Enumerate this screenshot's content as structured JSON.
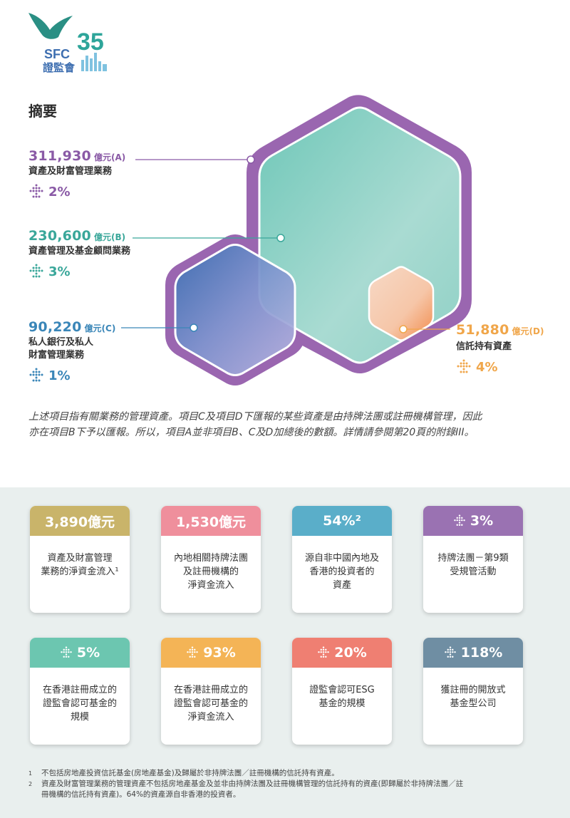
{
  "logo": {
    "text": "SFC",
    "anniversary": "35",
    "chinese": "證監會"
  },
  "heading": "摘要",
  "metrics": [
    {
      "key": "a",
      "value": "311,930",
      "unit": "億元(A)",
      "label": "資產及財富管理業務",
      "growth": "2%",
      "color": "#8a5aa6"
    },
    {
      "key": "b",
      "value": "230,600",
      "unit": "億元(B)",
      "label": "資產管理及基金顧問業務",
      "growth": "3%",
      "color": "#3aa79a"
    },
    {
      "key": "c",
      "value": "90,220",
      "unit": "億元(C)",
      "label_line1": "私人銀行及私人",
      "label_line2": "財富管理業務",
      "growth": "1%",
      "color": "#3a86b8"
    },
    {
      "key": "d",
      "value": "51,880",
      "unit": "億元(D)",
      "label": "信託持有資產",
      "growth": "4%",
      "color": "#f0a64a"
    }
  ],
  "note_line1": "上述項目指有關業務的管理資產。項目C及項目D下匯報的某些資產是由持牌法團或註冊機構管理，因此",
  "note_line2": "亦在項目B下予以匯報。所以，項目A並非項目B、C及D加總後的數額。詳情請參閱第20頁的附錄III。",
  "cards": [
    {
      "head": "3,890億元",
      "color": "#c9b46a",
      "lines": [
        "資產及財富管理",
        "業務的淨資金流入¹"
      ],
      "arrow": false
    },
    {
      "head": "1,530億元",
      "color": "#ef8f9c",
      "lines": [
        "內地相關持牌法團",
        "及註冊機構的",
        "淨資金流入"
      ],
      "arrow": false
    },
    {
      "head": "54%²",
      "color": "#5aaec9",
      "lines": [
        "源自非中國內地及",
        "香港的投資者的",
        "資產"
      ],
      "arrow": false
    },
    {
      "head": "3%",
      "color": "#9a72b2",
      "lines": [
        "持牌法團－第9類",
        "受規管活動"
      ],
      "arrow": true
    },
    {
      "head": "5%",
      "color": "#6cc6b0",
      "lines": [
        "在香港註冊成立的",
        "證監會認可基金的",
        "規模"
      ],
      "arrow": true
    },
    {
      "head": "93%",
      "color": "#f4b456",
      "lines": [
        "在香港註冊成立的",
        "證監會認可基金的",
        "淨資金流入"
      ],
      "arrow": true
    },
    {
      "head": "20%",
      "color": "#ef7f72",
      "lines": [
        "證監會認可ESG",
        "基金的規模"
      ],
      "arrow": true
    },
    {
      "head": "118%",
      "color": "#6f8ea3",
      "lines": [
        "獲註冊的開放式",
        "基金型公司"
      ],
      "arrow": true
    }
  ],
  "footnotes": [
    {
      "num": "1",
      "text": "不包括房地產投資信託基金(房地產基金)及歸屬於非持牌法團／註冊機構的信託持有資產。"
    },
    {
      "num": "2",
      "text": "資產及財富管理業務的管理資產不包括房地產基金及並非由持牌法團及註冊機構管理的信託持有的資產(即歸屬於非持牌法團／註",
      "text2": "冊機構的信託持有資產)。64%的資產源自非香港的投資者。"
    }
  ]
}
